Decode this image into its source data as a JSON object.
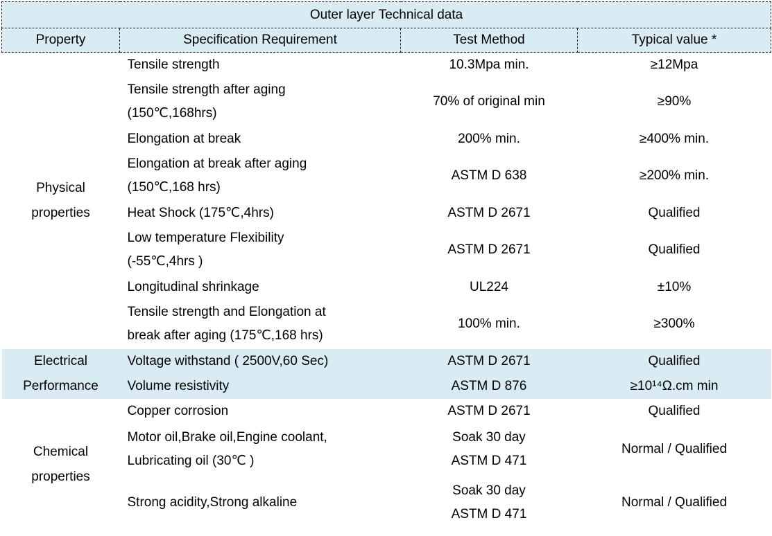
{
  "title": "Outer layer Technical data",
  "columns": {
    "property": "Property",
    "spec": "Specification Requirement",
    "method": "Test Method",
    "value": "Typical value *"
  },
  "colors": {
    "header_bg": "#d9ebf3",
    "highlight_bg": "#d9ebf3",
    "border": "#1a1a1a",
    "text": "#000000"
  },
  "groups": [
    {
      "property": "Physical\nproperties",
      "rows": [
        {
          "spec": "Tensile strength",
          "method": "10.3Mpa min.",
          "value": "≥12Mpa"
        },
        {
          "spec": "Tensile strength after aging\n(150℃,168hrs)",
          "method": "70%  of original min",
          "value": "≥90%"
        },
        {
          "spec": "Elongation at break",
          "method": "200% min.",
          "value": "≥400% min."
        },
        {
          "spec": "Elongation at break after aging\n(150℃,168 hrs)",
          "method": "ASTM D 638",
          "value": "≥200% min."
        },
        {
          "spec": "Heat Shock (175℃,4hrs)",
          "method": "ASTM D 2671",
          "value": "Qualified"
        },
        {
          "spec": "Low temperature Flexibility\n(-55℃,4hrs )",
          "method": "ASTM D 2671",
          "value": "Qualified"
        },
        {
          "spec": "Longitudinal shrinkage",
          "method": "UL224",
          "value": "±10%"
        },
        {
          "spec": "Tensile strength and Elongation at\nbreak after aging (175℃,168 hrs)",
          "method": "100% min.",
          "value": "≥300%"
        }
      ]
    },
    {
      "property": "Electrical\nPerformance",
      "rows": [
        {
          "spec": "Voltage withstand ( 2500V,60 Sec)",
          "method": "ASTM D 2671",
          "value": "Qualified"
        },
        {
          "spec": "Volume resistivity",
          "method": "ASTM D 876",
          "value": "≥10¹⁴Ω.cm min"
        }
      ]
    },
    {
      "property": "Chemical\nproperties",
      "rows": [
        {
          "spec": "Copper corrosion",
          "method": "ASTM D 2671",
          "value": "Qualified"
        },
        {
          "spec": "Motor oil,Brake oil,Engine coolant,\nLubricating oil   (30℃ )",
          "method": "Soak 30 day\nASTM D 471",
          "value": "Normal / Qualified"
        },
        {
          "spec": "Strong acidity,Strong alkaline",
          "method": "Soak 30 day\nASTM D 471",
          "value": "Normal / Qualified"
        }
      ]
    }
  ]
}
